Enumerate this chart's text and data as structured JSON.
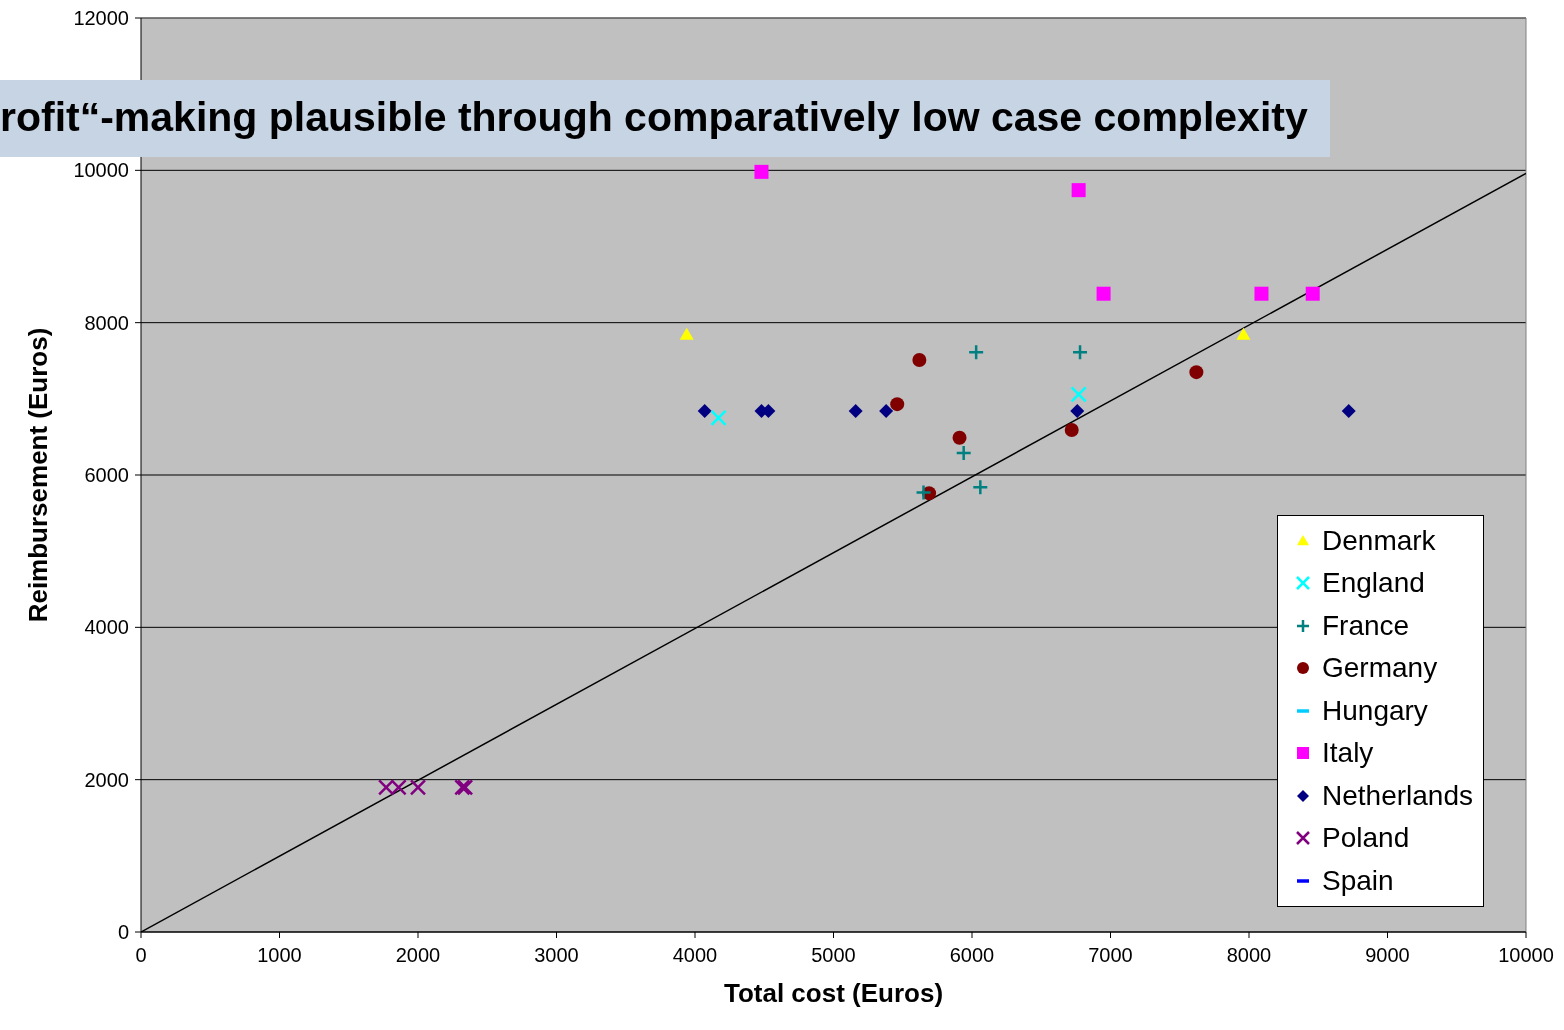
{
  "chart_data": {
    "type": "scatter",
    "title": "rofit“-making plausible through comparatively low case complexity",
    "xlabel": "Total cost (Euros)",
    "ylabel": "Reimbursement (Euros)",
    "xlim": [
      0,
      10000
    ],
    "xticks": [
      0,
      1000,
      2000,
      3000,
      4000,
      5000,
      6000,
      7000,
      8000,
      9000,
      10000
    ],
    "ylim": [
      0,
      12000
    ],
    "yticks": [
      0,
      2000,
      4000,
      6000,
      8000,
      10000,
      12000
    ],
    "grid": "y",
    "legend": "right",
    "series": [
      {
        "name": "Denmark",
        "color": "#ffff00",
        "marker": "triangle",
        "x": [
          3940,
          7960
        ],
        "values": [
          7840,
          7840
        ]
      },
      {
        "name": "England",
        "color": "#00ffff",
        "marker": "cross",
        "x": [
          4170,
          6770
        ],
        "values": [
          6750,
          7060
        ]
      },
      {
        "name": "France",
        "color": "#008080",
        "marker": "plus",
        "x": [
          6030,
          6780,
          5940,
          6060,
          5650
        ],
        "values": [
          7610,
          7610,
          6290,
          5840,
          5770
        ]
      },
      {
        "name": "Germany",
        "color": "#800000",
        "marker": "circle",
        "x": [
          5620,
          5460,
          5910,
          5690,
          6720,
          7620
        ],
        "values": [
          7510,
          6930,
          6490,
          5760,
          6590,
          7350
        ]
      },
      {
        "name": "Hungary",
        "color": "#00ccff",
        "marker": "dash"
      },
      {
        "name": "Italy",
        "color": "#ff00ff",
        "marker": "square",
        "x": [
          4480,
          6770,
          6950,
          8090,
          8460
        ],
        "values": [
          9980,
          9740,
          8380,
          8380,
          8380
        ]
      },
      {
        "name": "Netherlands",
        "color": "#000080",
        "marker": "diamond",
        "x": [
          4070,
          4480,
          4530,
          5160,
          5380,
          6760,
          8720
        ],
        "values": [
          6840,
          6840,
          6840,
          6840,
          6840,
          6840,
          6840
        ]
      },
      {
        "name": "Poland",
        "color": "#800080",
        "marker": "cross",
        "x": [
          1770,
          1860,
          2000,
          2320,
          2340
        ],
        "values": [
          1900,
          1900,
          1900,
          1900,
          1900
        ]
      },
      {
        "name": "Spain",
        "color": "#0000ff",
        "marker": "dash"
      },
      {
        "type": "line",
        "color": "#000000",
        "x": [
          0,
          10000
        ],
        "values": [
          0,
          9960
        ]
      }
    ]
  }
}
